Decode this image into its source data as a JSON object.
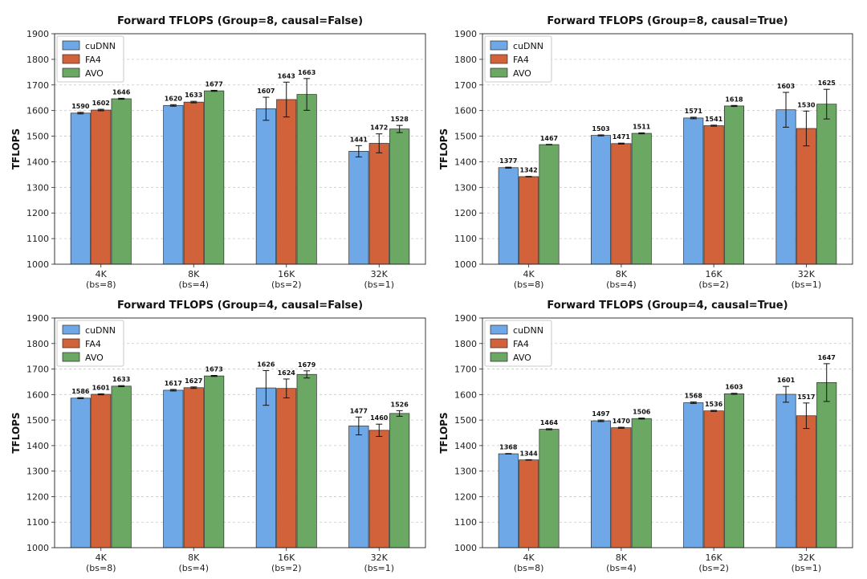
{
  "chart_data": [
    {
      "type": "bar",
      "title": "Forward TFLOPS (Group=8, causal=False)",
      "ylabel": "TFLOPS",
      "xlabel": "",
      "ylim": [
        1000,
        1900
      ],
      "yticks": [
        1000,
        1100,
        1200,
        1300,
        1400,
        1500,
        1600,
        1700,
        1800,
        1900
      ],
      "grid": "horizontal-dashed",
      "legend": "top-left",
      "categories": [
        [
          "4K",
          "(bs=8)"
        ],
        [
          "8K",
          "(bs=4)"
        ],
        [
          "16K",
          "(bs=2)"
        ],
        [
          "32K",
          "(bs=1)"
        ]
      ],
      "series": [
        {
          "name": "cuDNN",
          "color": "#6fa8e6",
          "values": [
            1590,
            1620,
            1607,
            1441
          ],
          "errors": [
            3,
            3,
            45,
            22
          ]
        },
        {
          "name": "FA4",
          "color": "#d1623a",
          "values": [
            1602,
            1633,
            1643,
            1472
          ],
          "errors": [
            3,
            3,
            68,
            37
          ]
        },
        {
          "name": "AVO",
          "color": "#6aa864",
          "values": [
            1646,
            1677,
            1663,
            1528
          ],
          "errors": [
            2,
            2,
            62,
            14
          ]
        }
      ]
    },
    {
      "type": "bar",
      "title": "Forward TFLOPS (Group=8, causal=True)",
      "ylabel": "TFLOPS",
      "xlabel": "",
      "ylim": [
        1000,
        1900
      ],
      "yticks": [
        1000,
        1100,
        1200,
        1300,
        1400,
        1500,
        1600,
        1700,
        1800,
        1900
      ],
      "grid": "horizontal-dashed",
      "legend": "top-left",
      "categories": [
        [
          "4K",
          "(bs=8)"
        ],
        [
          "8K",
          "(bs=4)"
        ],
        [
          "16K",
          "(bs=2)"
        ],
        [
          "32K",
          "(bs=1)"
        ]
      ],
      "series": [
        {
          "name": "cuDNN",
          "color": "#6fa8e6",
          "values": [
            1377,
            1503,
            1571,
            1603
          ],
          "errors": [
            2,
            2,
            3,
            68
          ]
        },
        {
          "name": "FA4",
          "color": "#d1623a",
          "values": [
            1342,
            1471,
            1541,
            1530
          ],
          "errors": [
            1,
            2,
            2,
            68
          ]
        },
        {
          "name": "AVO",
          "color": "#6aa864",
          "values": [
            1467,
            1511,
            1618,
            1625
          ],
          "errors": [
            1,
            2,
            2,
            58
          ]
        }
      ]
    },
    {
      "type": "bar",
      "title": "Forward TFLOPS (Group=4, causal=False)",
      "ylabel": "TFLOPS",
      "xlabel": "",
      "ylim": [
        1000,
        1900
      ],
      "yticks": [
        1000,
        1100,
        1200,
        1300,
        1400,
        1500,
        1600,
        1700,
        1800,
        1900
      ],
      "grid": "horizontal-dashed",
      "legend": "top-left",
      "categories": [
        [
          "4K",
          "(bs=8)"
        ],
        [
          "8K",
          "(bs=4)"
        ],
        [
          "16K",
          "(bs=2)"
        ],
        [
          "32K",
          "(bs=1)"
        ]
      ],
      "series": [
        {
          "name": "cuDNN",
          "color": "#6fa8e6",
          "values": [
            1586,
            1617,
            1626,
            1477
          ],
          "errors": [
            2,
            3,
            68,
            35
          ]
        },
        {
          "name": "FA4",
          "color": "#d1623a",
          "values": [
            1601,
            1627,
            1624,
            1460
          ],
          "errors": [
            2,
            3,
            37,
            24
          ]
        },
        {
          "name": "AVO",
          "color": "#6aa864",
          "values": [
            1633,
            1673,
            1679,
            1526
          ],
          "errors": [
            2,
            2,
            14,
            11
          ]
        }
      ]
    },
    {
      "type": "bar",
      "title": "Forward TFLOPS (Group=4, causal=True)",
      "ylabel": "TFLOPS",
      "xlabel": "",
      "ylim": [
        1000,
        1900
      ],
      "yticks": [
        1000,
        1100,
        1200,
        1300,
        1400,
        1500,
        1600,
        1700,
        1800,
        1900
      ],
      "grid": "horizontal-dashed",
      "legend": "top-left",
      "categories": [
        [
          "4K",
          "(bs=8)"
        ],
        [
          "8K",
          "(bs=4)"
        ],
        [
          "16K",
          "(bs=2)"
        ],
        [
          "32K",
          "(bs=1)"
        ]
      ],
      "series": [
        {
          "name": "cuDNN",
          "color": "#6fa8e6",
          "values": [
            1368,
            1497,
            1568,
            1601
          ],
          "errors": [
            1,
            3,
            3,
            31
          ]
        },
        {
          "name": "FA4",
          "color": "#d1623a",
          "values": [
            1344,
            1470,
            1536,
            1517
          ],
          "errors": [
            1,
            2,
            2,
            50
          ]
        },
        {
          "name": "AVO",
          "color": "#6aa864",
          "values": [
            1464,
            1506,
            1603,
            1647
          ],
          "errors": [
            2,
            2,
            2,
            74
          ]
        }
      ]
    }
  ]
}
